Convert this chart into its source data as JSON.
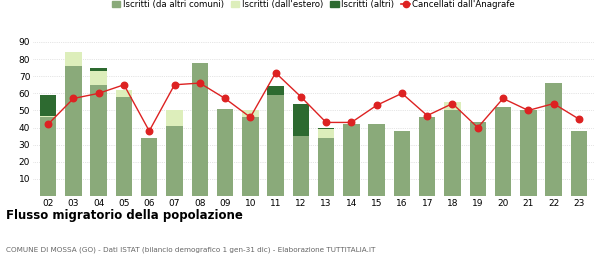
{
  "years": [
    "02",
    "03",
    "04",
    "05",
    "06",
    "07",
    "08",
    "09",
    "10",
    "11",
    "12",
    "13",
    "14",
    "15",
    "16",
    "17",
    "18",
    "19",
    "20",
    "21",
    "22",
    "23"
  ],
  "iscritti_altri_comuni": [
    46,
    76,
    65,
    58,
    34,
    41,
    78,
    51,
    46,
    59,
    35,
    34,
    42,
    42,
    38,
    46,
    50,
    43,
    52,
    50,
    66,
    38
  ],
  "iscritti_estero": [
    1,
    8,
    8,
    4,
    0,
    9,
    0,
    0,
    4,
    0,
    0,
    5,
    0,
    0,
    0,
    0,
    5,
    0,
    0,
    0,
    0,
    0
  ],
  "iscritti_altri": [
    12,
    0,
    2,
    0,
    0,
    0,
    0,
    0,
    0,
    5,
    19,
    1,
    0,
    0,
    0,
    0,
    0,
    0,
    0,
    0,
    0,
    0
  ],
  "cancellati": [
    42,
    57,
    60,
    65,
    38,
    65,
    66,
    57,
    46,
    72,
    58,
    43,
    43,
    53,
    60,
    47,
    54,
    40,
    57,
    50,
    54,
    45
  ],
  "color_altri_comuni": "#8aaa7a",
  "color_estero": "#ddeebb",
  "color_altri": "#2d6a30",
  "color_cancellati": "#dd2222",
  "title": "Flusso migratorio della popolazione",
  "subtitle": "COMUNE DI MOSSA (GO) - Dati ISTAT (bilancio demografico 1 gen-31 dic) - Elaborazione TUTTITALIA.IT",
  "legend_labels": [
    "Iscritti (da altri comuni)",
    "Iscritti (dall'estero)",
    "Iscritti (altri)",
    "Cancellati dall'Anagrafe"
  ],
  "ylim": [
    0,
    90
  ],
  "yticks": [
    0,
    10,
    20,
    30,
    40,
    50,
    60,
    70,
    80,
    90
  ],
  "background_color": "#ffffff",
  "grid_color": "#cccccc"
}
